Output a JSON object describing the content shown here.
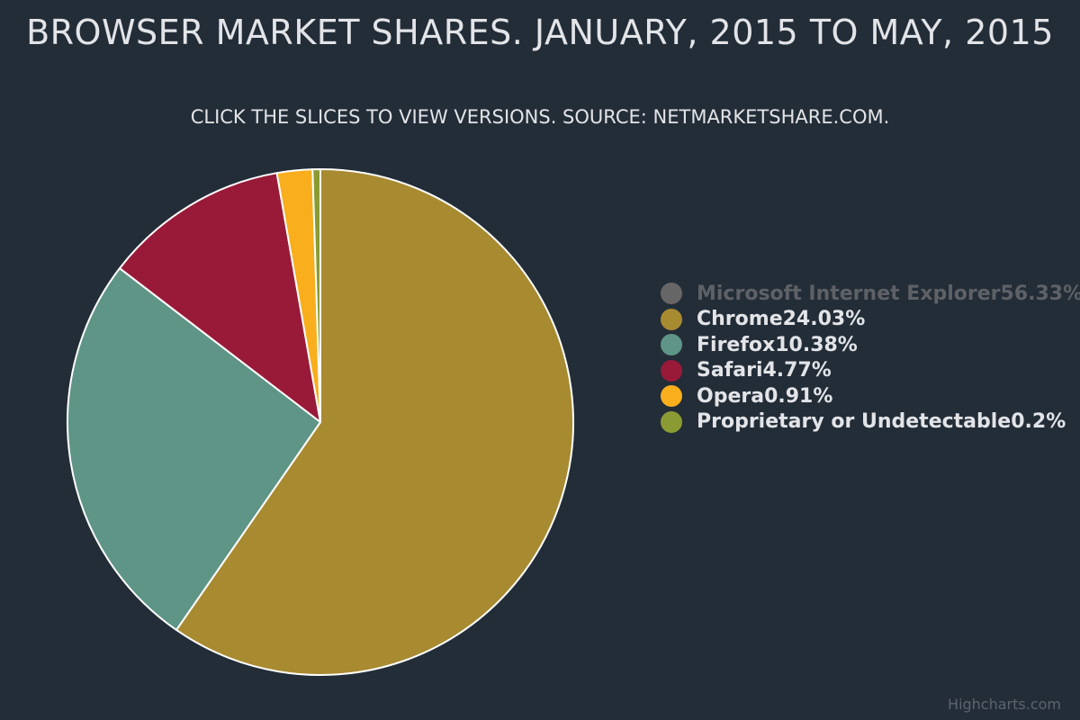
{
  "chart_data": {
    "type": "pie",
    "title": "BROWSER MARKET SHARES. JANUARY, 2015 TO MAY, 2015",
    "subtitle": "CLICK THE SLICES TO VIEW VERSIONS. SOURCE: NETMARKETSHARE.COM.",
    "legend_position": "right",
    "slices": [
      {
        "name": "Microsoft Internet Explorer",
        "value": 56.33,
        "label": "56.33%",
        "color": "#666666",
        "visible": false
      },
      {
        "name": "Chrome",
        "value": 24.03,
        "label": "24.03%",
        "color": "#a88a31",
        "visible": true
      },
      {
        "name": "Firefox",
        "value": 10.38,
        "label": "10.38%",
        "color": "#5e9586",
        "visible": true
      },
      {
        "name": "Safari",
        "value": 4.77,
        "label": "4.77%",
        "color": "#991a38",
        "visible": true
      },
      {
        "name": "Opera",
        "value": 0.91,
        "label": "0.91%",
        "color": "#f8ae1d",
        "visible": true
      },
      {
        "name": "Proprietary or Undetectable",
        "value": 0.2,
        "label": "0.2%",
        "color": "#8b9b34",
        "visible": true
      }
    ]
  },
  "credits": "Highcharts.com"
}
